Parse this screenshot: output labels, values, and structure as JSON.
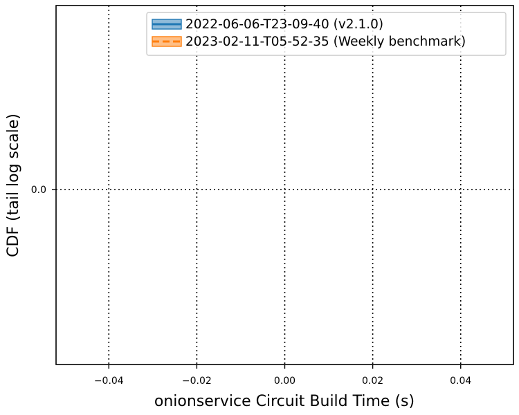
{
  "chart_data": {
    "type": "line",
    "xlabel": "onionservice Circuit Build Time (s)",
    "ylabel": "CDF (tail log scale)",
    "xlim": [
      -0.052,
      0.052
    ],
    "xticks": [
      -0.04,
      -0.02,
      0.0,
      0.02,
      0.04
    ],
    "xtick_labels": [
      "−0.04",
      "−0.02",
      "0.00",
      "0.02",
      "0.04"
    ],
    "yticks": [
      0.0
    ],
    "ytick_labels": [
      "0.0"
    ],
    "grid": true,
    "legend_position": "upper right",
    "series": [
      {
        "name": "2022-06-06-T23-09-40 (v2.1.0)",
        "color": "#1f77b4",
        "linestyle": "solid",
        "x": [],
        "y": []
      },
      {
        "name": "2023-02-11-T05-52-35 (Weekly benchmark)",
        "color": "#ff7f0e",
        "linestyle": "dashed",
        "x": [],
        "y": []
      }
    ]
  }
}
